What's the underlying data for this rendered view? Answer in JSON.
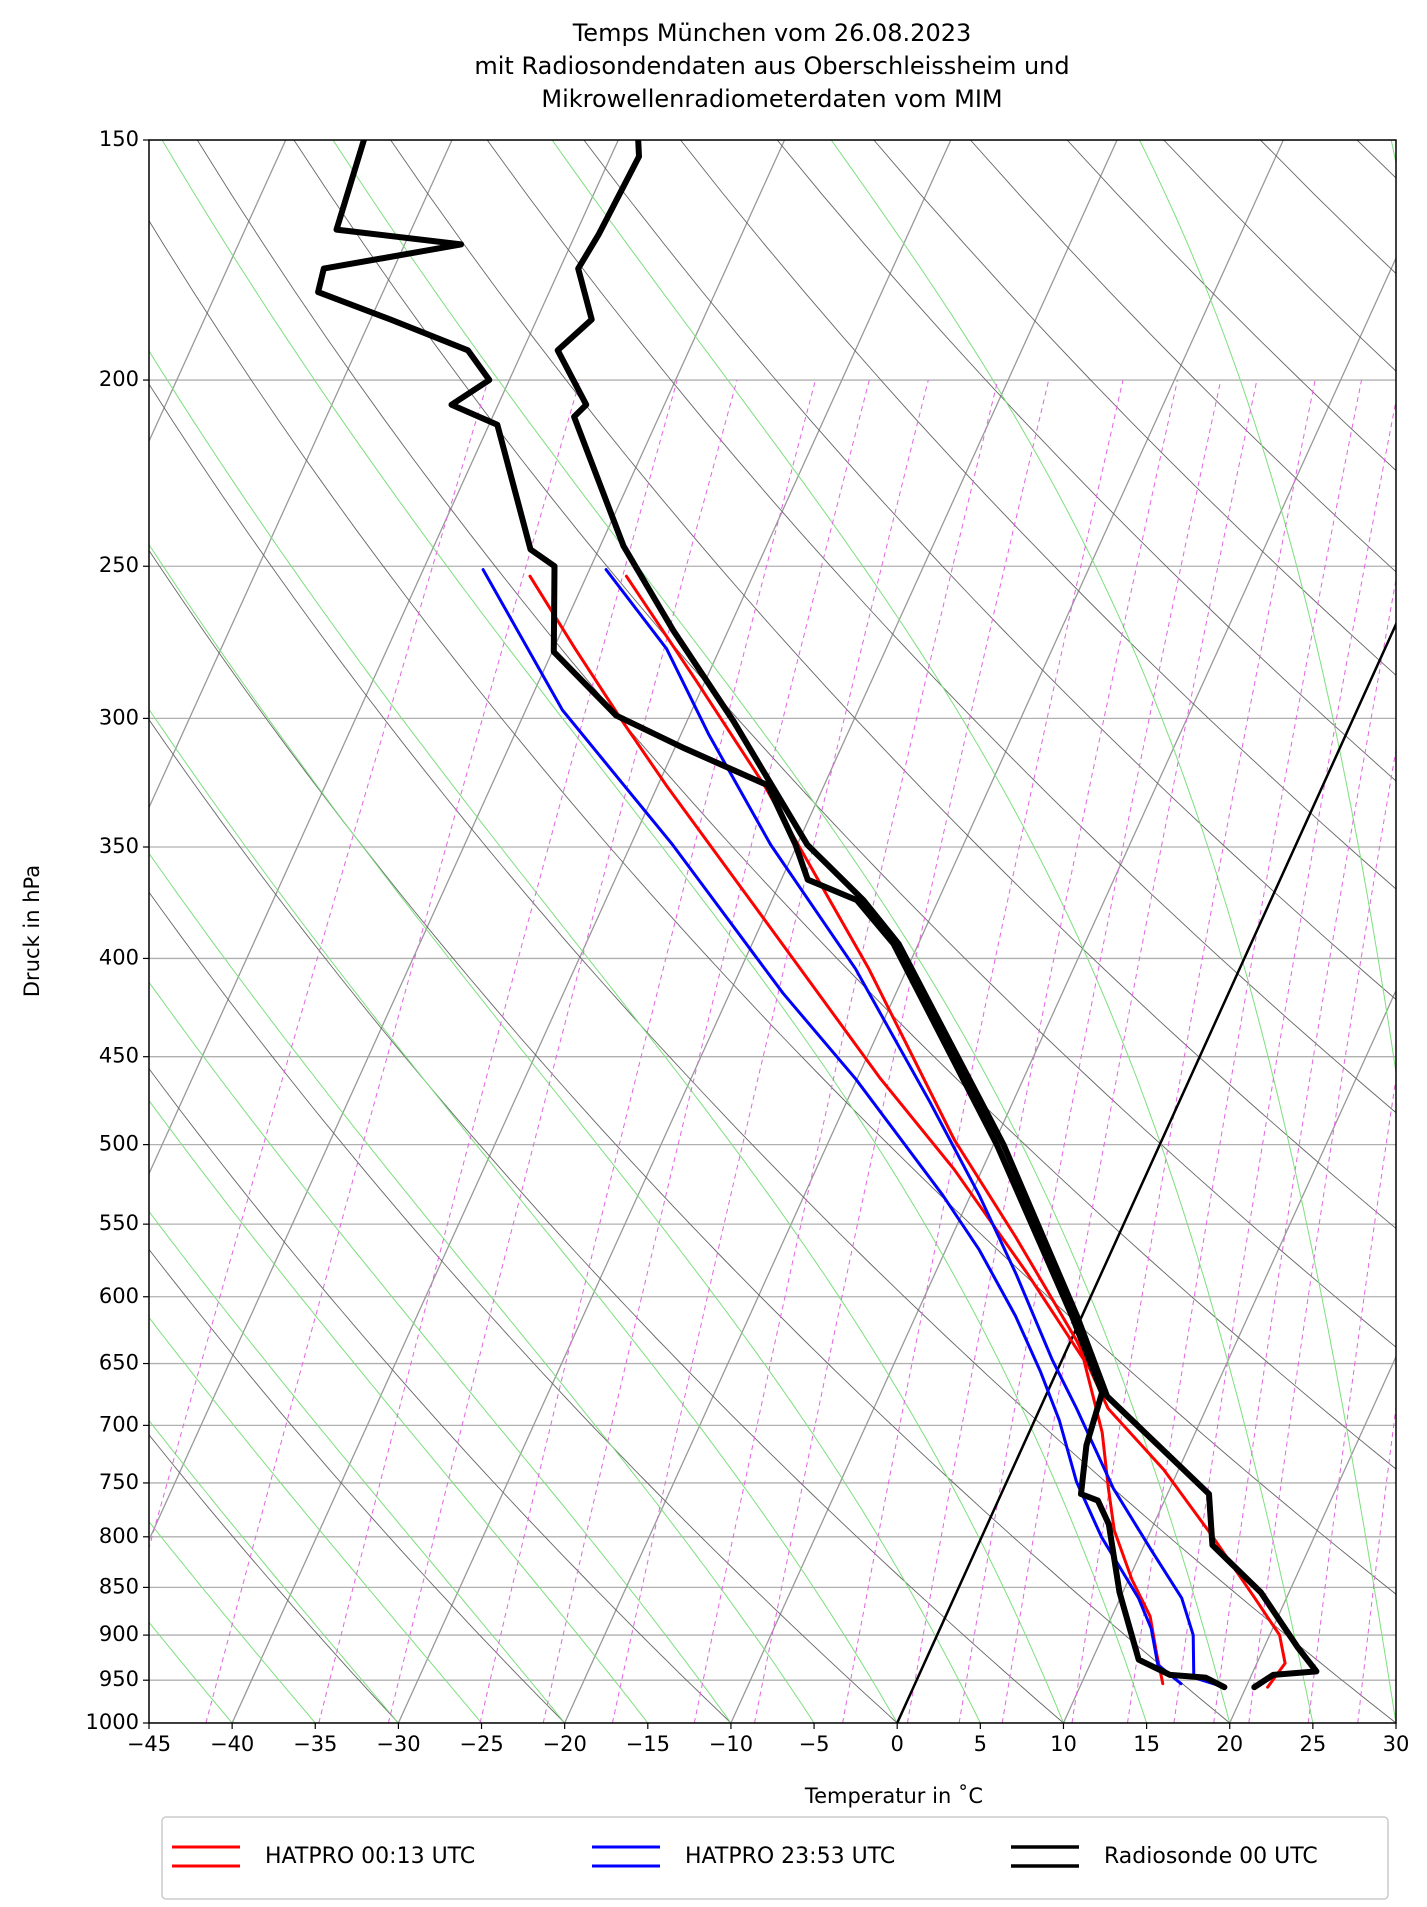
{
  "chart_data": {
    "type": "skewt",
    "title": [
      "Temps München vom 26.08.2023",
      "mit Radiosondendaten aus Oberschleissheim und",
      "Mikrowellenradiometerdaten vom MIM"
    ],
    "xlabel": "Temperatur in ˚C",
    "ylabel": "Druck in hPa",
    "xlim": [
      -45,
      30
    ],
    "ylim": [
      1000,
      150
    ],
    "log_y": true,
    "grid": true,
    "xticks": [
      {
        "value": -45,
        "label": "−45"
      },
      {
        "value": -40,
        "label": "−40"
      },
      {
        "value": -35,
        "label": "−35"
      },
      {
        "value": -30,
        "label": "−30"
      },
      {
        "value": -25,
        "label": "−25"
      },
      {
        "value": -20,
        "label": "−20"
      },
      {
        "value": -15,
        "label": "−15"
      },
      {
        "value": -10,
        "label": "−10"
      },
      {
        "value": -5,
        "label": "−5"
      },
      0,
      5,
      10,
      15,
      20,
      25,
      30
    ],
    "yticks": [
      1000,
      950,
      900,
      850,
      800,
      750,
      700,
      650,
      600,
      550,
      500,
      450,
      400,
      350,
      300,
      250,
      200,
      150
    ],
    "reference_isotherm": 0,
    "legend": "lower center",
    "series": [
      {
        "name": "HATPRO 00:13 UTC",
        "color": "#ff0000",
        "linewidth": 3,
        "temperature": {
          "pressure": [
            958,
            931,
            900,
            861,
            800,
            738,
            686,
            633,
            559,
            497,
            405,
            325,
            287,
            253
          ],
          "values": [
            21.3,
            21.7,
            20.6,
            18.1,
            13.9,
            9.1,
            4.1,
            0.4,
            -6.1,
            -12.5,
            -22.3,
            -33.6,
            -40.5,
            -47.6
          ]
        },
        "dewpoint": {
          "pressure": [
            954,
            920,
            880,
            842,
            794,
            755,
            706,
            647,
            584,
            515,
            462,
            393,
            325,
            302,
            276,
            253
          ],
          "values": [
            14.9,
            13.7,
            12.3,
            10.2,
            7.8,
            6.3,
            4.4,
            1.3,
            -4.4,
            -11.7,
            -18.6,
            -28.2,
            -39.5,
            -43.7,
            -48.7,
            -53.4
          ]
        }
      },
      {
        "name": "HATPRO 23:53 UTC",
        "color": "#0000ff",
        "linewidth": 3,
        "temperature": {
          "pressure": [
            958,
            947,
            900,
            861,
            812,
            755,
            686,
            647,
            584,
            531,
            475,
            405,
            349,
            306,
            276,
            251
          ],
          "values": [
            18.7,
            16.6,
            15.4,
            13.7,
            10.5,
            6.6,
            2.2,
            -0.6,
            -5.1,
            -9.5,
            -15.0,
            -23.1,
            -31.6,
            -38.3,
            -43.2,
            -49.0
          ]
        },
        "dewpoint": {
          "pressure": [
            954,
            933,
            893,
            861,
            800,
            749,
            696,
            656,
            614,
            567,
            531,
            462,
            417,
            349,
            297,
            251
          ],
          "values": [
            16.0,
            14.1,
            12.7,
            11.1,
            7.2,
            4.2,
            1.5,
            -1.0,
            -4.0,
            -8.0,
            -11.7,
            -20.1,
            -26.8,
            -37.5,
            -47.8,
            -56.4
          ]
        }
      },
      {
        "name": "Radiosonde 00 UTC",
        "color": "#000000",
        "linewidth": 6,
        "temperature": {
          "pressure": [
            958,
            944,
            940,
            913,
            855,
            808,
            760,
            676,
            614,
            500,
            393,
            373,
            349,
            301,
            270,
            244,
            209,
            206,
            193,
            186,
            175,
            168,
            153,
            150
          ],
          "values": [
            20.5,
            21.3,
            23.8,
            22.0,
            18.3,
            14.1,
            12.5,
            3.7,
            -0.3,
            -9.4,
            -21.2,
            -24.5,
            -29.4,
            -37.2,
            -43.3,
            -48.6,
            -55.1,
            -54.7,
            -57.9,
            -56.7,
            -58.9,
            -58.6,
            -58.3,
            -58.8
          ]
        },
        "dewpoint": {
          "pressure": [
            958,
            947,
            944,
            927,
            855,
            788,
            766,
            760,
            717,
            673,
            614,
            500,
            393,
            373,
            364,
            349,
            325,
            311,
            299,
            277,
            250,
            245,
            211,
            206,
            200,
            193,
            186,
            180,
            175,
            170,
            167,
            150
          ],
          "values": [
            18.7,
            17.3,
            15.1,
            12.8,
            9.8,
            7.3,
            6.0,
            4.8,
            3.8,
            3.3,
            -0.6,
            -9.8,
            -21.5,
            -24.9,
            -28.4,
            -30.1,
            -33.4,
            -39.4,
            -44.4,
            -49.9,
            -52.2,
            -54.1,
            -59.5,
            -62.8,
            -61.2,
            -63.3,
            -68.8,
            -73.9,
            -74.2,
            -66.6,
            -74.5,
            -75.3
          ]
        }
      }
    ]
  }
}
